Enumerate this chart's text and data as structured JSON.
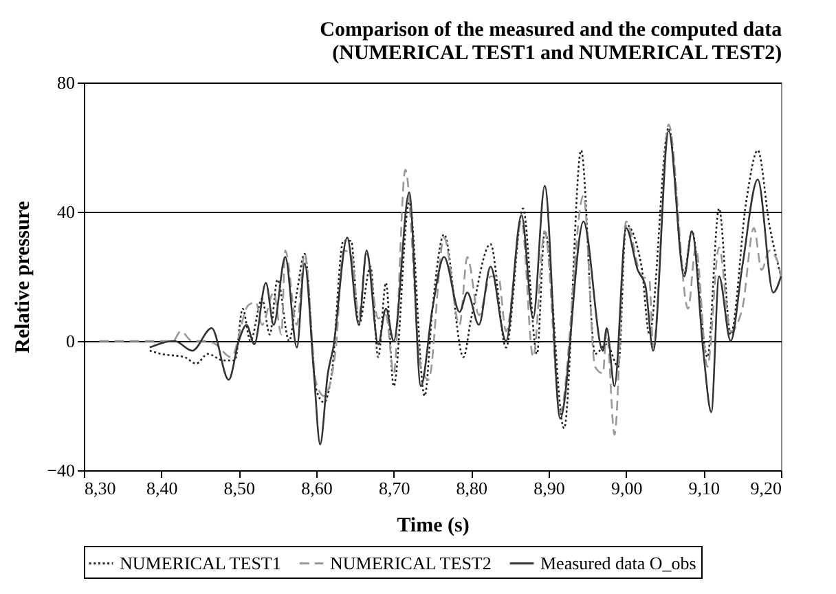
{
  "chart_data": {
    "type": "line",
    "title": [
      "Comparison of the measured and the computed data",
      "(NUMERICAL TEST1 and NUMERICAL TEST2)"
    ],
    "xlabel": "Time (s)",
    "ylabel": "Relative pressure",
    "xlim": [
      8.3,
      9.2
    ],
    "ylim": [
      -40,
      80
    ],
    "xticks": [
      {
        "value": 8.3,
        "label": "8,30"
      },
      {
        "value": 8.4,
        "label": "8,40"
      },
      {
        "value": 8.5,
        "label": "8,50"
      },
      {
        "value": 8.6,
        "label": "8,60"
      },
      {
        "value": 8.7,
        "label": "8,70"
      },
      {
        "value": 8.8,
        "label": "8,80"
      },
      {
        "value": 8.9,
        "label": "8,90"
      },
      {
        "value": 9.0,
        "label": "9,00"
      },
      {
        "value": 9.1,
        "label": "9,10"
      },
      {
        "value": 9.2,
        "label": "9,20"
      }
    ],
    "yticks": [
      -40,
      0,
      40,
      80
    ],
    "grid": "y",
    "legend": "bottom",
    "marker": "none",
    "series": [
      {
        "name": "NUMERICAL TEST1",
        "color": "#222222",
        "line_style": "dotted",
        "x": [
          8.385,
          8.4,
          8.43,
          8.445,
          8.46,
          8.48,
          8.495,
          8.505,
          8.515,
          8.53,
          8.54,
          8.55,
          8.565,
          8.575,
          8.585,
          8.6,
          8.61,
          8.62,
          8.635,
          8.645,
          8.655,
          8.67,
          8.68,
          8.69,
          8.7,
          8.72,
          8.74,
          8.75,
          8.765,
          8.79,
          8.8,
          8.825,
          8.845,
          8.867,
          8.885,
          8.895,
          8.92,
          8.942,
          8.96,
          8.975,
          8.99,
          9.0,
          9.02,
          9.03,
          9.055,
          9.075,
          9.085,
          9.105,
          9.12,
          9.135,
          9.155,
          9.17,
          9.185,
          9.2
        ],
        "values": [
          -3,
          -4,
          -5,
          -7,
          -4,
          -6,
          -6,
          10,
          0,
          13,
          2,
          19,
          0,
          15,
          27,
          -15,
          -19,
          -10,
          31,
          31,
          5,
          23,
          -5,
          18,
          -14,
          43,
          -17,
          10,
          33,
          -5,
          7,
          30,
          -2,
          41,
          -4,
          34,
          -27,
          59,
          -4,
          -1,
          -8,
          36,
          23,
          2,
          66,
          21,
          34,
          -5,
          41,
          2,
          43,
          59,
          36,
          20
        ]
      },
      {
        "name": "NUMERICAL TEST2",
        "color": "#999999",
        "line_style": "dashed",
        "x": [
          8.32,
          8.415,
          8.425,
          8.44,
          8.46,
          8.47,
          8.49,
          8.512,
          8.522,
          8.53,
          8.545,
          8.555,
          8.56,
          8.575,
          8.585,
          8.6,
          8.61,
          8.625,
          8.635,
          8.645,
          8.655,
          8.665,
          8.68,
          8.69,
          8.7,
          8.715,
          8.735,
          8.745,
          8.765,
          8.785,
          8.795,
          8.81,
          8.825,
          8.835,
          8.845,
          8.865,
          8.88,
          8.895,
          8.915,
          8.945,
          8.96,
          8.97,
          8.975,
          8.985,
          9.0,
          9.02,
          9.03,
          9.035,
          9.055,
          9.08,
          9.09,
          9.105,
          9.12,
          9.135,
          9.15,
          9.165,
          9.175,
          9.185,
          9.195,
          9.2
        ],
        "values": [
          0,
          0,
          3,
          0,
          0,
          -1,
          -5,
          11,
          12,
          5,
          15,
          2,
          28,
          5,
          27,
          -13,
          -17,
          -3,
          28,
          27,
          8,
          27,
          7,
          8,
          -10,
          53,
          -8,
          -12,
          32,
          5,
          26,
          8,
          20,
          20,
          3,
          37,
          -5,
          34,
          -22,
          45,
          -8,
          -10,
          3,
          -29,
          37,
          20,
          19,
          -2,
          67,
          10,
          29,
          -8,
          29,
          3,
          10,
          35,
          22,
          28,
          25,
          20
        ]
      },
      {
        "name": "Measured data O_obs",
        "color": "#333333",
        "line_style": "solid",
        "x": [
          8.385,
          8.417,
          8.44,
          8.465,
          8.487,
          8.5,
          8.51,
          8.52,
          8.535,
          8.545,
          8.56,
          8.575,
          8.585,
          8.597,
          8.605,
          8.615,
          8.622,
          8.64,
          8.655,
          8.665,
          8.68,
          8.69,
          8.7,
          8.72,
          8.735,
          8.75,
          8.765,
          8.785,
          8.795,
          8.81,
          8.825,
          8.845,
          8.865,
          8.88,
          8.895,
          8.915,
          8.945,
          8.97,
          8.975,
          8.985,
          9.0,
          9.015,
          9.025,
          9.035,
          9.055,
          9.075,
          9.085,
          9.1,
          9.11,
          9.12,
          9.135,
          9.15,
          9.17,
          9.19,
          9.2
        ],
        "values": [
          -2,
          0,
          -3,
          4,
          -12,
          0,
          5,
          -1,
          18,
          5,
          26,
          -2,
          24,
          -10,
          -32,
          -10,
          -2,
          32,
          5,
          28,
          -1,
          10,
          0,
          46,
          -14,
          10,
          26,
          9,
          15,
          5,
          23,
          0,
          39,
          7,
          48,
          -24,
          37,
          -3,
          4,
          -14,
          35,
          22,
          17,
          -3,
          65,
          20,
          34,
          -4,
          -22,
          20,
          0,
          23,
          50,
          15,
          20
        ]
      }
    ]
  }
}
